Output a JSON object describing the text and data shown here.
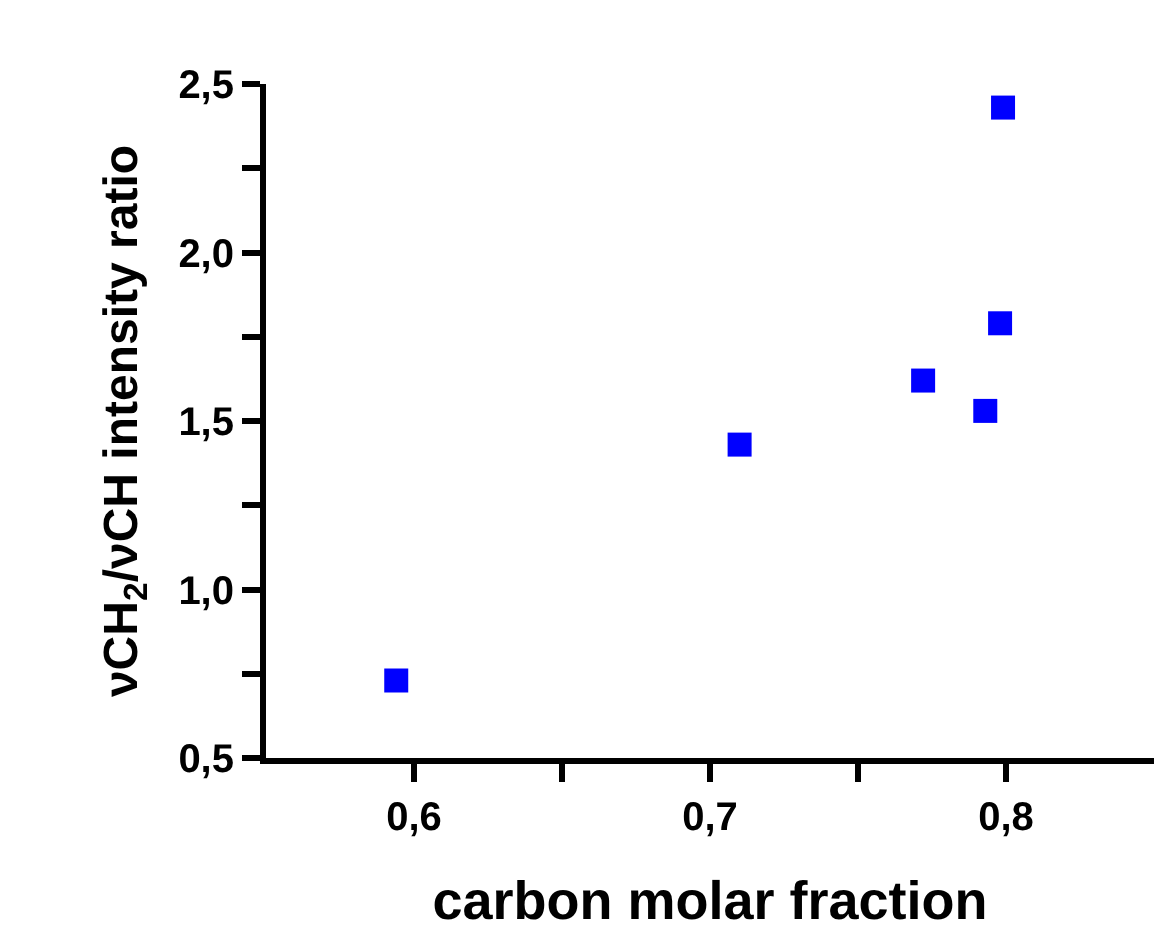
{
  "chart_data": {
    "type": "scatter",
    "xlabel": "carbon molar fraction",
    "ylabel": "νCH$_{2}$/νCH intensity ratio",
    "x": [
      0.594,
      0.71,
      0.772,
      0.793,
      0.798,
      0.799
    ],
    "series": [
      {
        "color": "#0000ff",
        "values": [
          0.73,
          1.43,
          1.62,
          1.53,
          1.79,
          2.43
        ]
      }
    ],
    "marker": "square",
    "xlim": [
      0.55,
      0.85
    ],
    "xticks": [
      {
        "value": 0.6,
        "label": "0,6"
      },
      {
        "value": 0.65,
        "label": null
      },
      {
        "value": 0.7,
        "label": "0,7"
      },
      {
        "value": 0.75,
        "label": null
      },
      {
        "value": 0.8,
        "label": "0,8"
      }
    ],
    "ylim": [
      0.5,
      2.5
    ],
    "yticks": [
      {
        "value": 0.5,
        "label": "0,5"
      },
      {
        "value": 0.75,
        "label": null
      },
      {
        "value": 1.0,
        "label": "1,0"
      },
      {
        "value": 1.25,
        "label": null
      },
      {
        "value": 1.5,
        "label": "1,5"
      },
      {
        "value": 1.75,
        "label": null
      },
      {
        "value": 2.0,
        "label": "2,0"
      },
      {
        "value": 2.25,
        "label": null
      },
      {
        "value": 2.5,
        "label": "2,5"
      }
    ]
  }
}
